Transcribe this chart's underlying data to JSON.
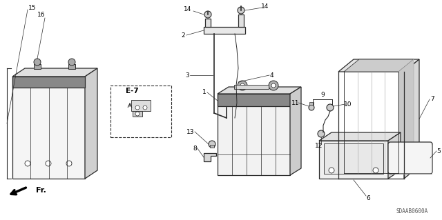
{
  "background_color": "#ffffff",
  "line_color": "#2a2a2a",
  "diagram_code": "SDAAB0600A",
  "fig_w": 6.4,
  "fig_h": 3.19,
  "dpi": 100
}
